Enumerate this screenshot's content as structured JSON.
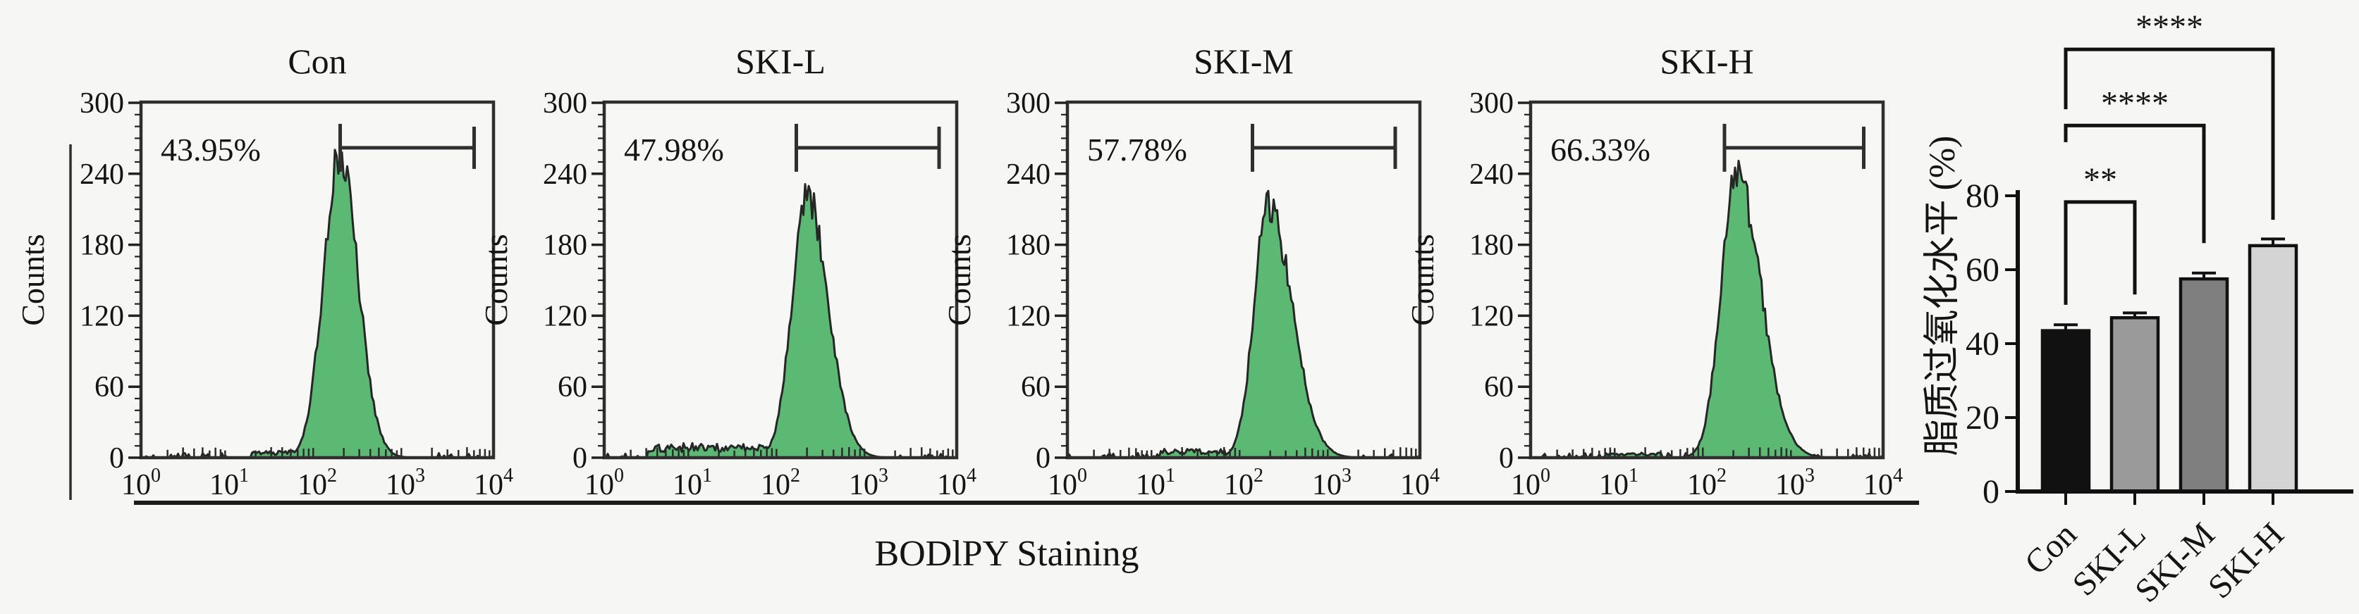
{
  "figure": {
    "background": "#f6f6f5",
    "bottom_axis_label": "BODlPY Staining",
    "counts_axis_label": "Counts"
  },
  "chart_data": [
    {
      "type": "area",
      "subtype": "flow-cytometry-histograms",
      "xlabel": "BODlPY Staining",
      "ylabel": "Counts",
      "x_scale": "log10",
      "xlim_log": [
        0,
        4
      ],
      "ylim": [
        0,
        300
      ],
      "yticks": [
        0,
        60,
        120,
        180,
        240,
        300
      ],
      "ytick_labels": [
        "0",
        "60",
        "120",
        "180",
        "240",
        "300"
      ],
      "xticks": [
        {
          "m": "10",
          "e": "0"
        },
        {
          "m": "10",
          "e": "1"
        },
        {
          "m": "10",
          "e": "2"
        },
        {
          "m": "10",
          "e": "3"
        },
        {
          "m": "10",
          "e": "4"
        }
      ],
      "fill_color": "#5cb973",
      "outline_color": "#262626",
      "panels": [
        {
          "title": "Con",
          "percent": "43.95%",
          "peak_log_center": 2.25,
          "peak_height": 256,
          "sigma_left": 0.18,
          "sigma_right": 0.21,
          "shelf": {
            "from": 1.25,
            "to": 1.9,
            "height": 4
          },
          "gate": {
            "log_from": 2.26,
            "log_to": 3.78,
            "counts": 262
          }
        },
        {
          "title": "SKI-L",
          "percent": "47.98%",
          "peak_log_center": 2.3,
          "peak_height": 221,
          "sigma_left": 0.17,
          "sigma_right": 0.24,
          "shelf": {
            "from": 0.5,
            "to": 1.95,
            "height": 8
          },
          "gate": {
            "log_from": 2.18,
            "log_to": 3.8,
            "counts": 262
          }
        },
        {
          "title": "SKI-M",
          "percent": "57.78%",
          "peak_log_center": 2.28,
          "peak_height": 213,
          "sigma_left": 0.16,
          "sigma_right": 0.27,
          "shelf": {
            "from": 1.05,
            "to": 1.8,
            "height": 5
          },
          "gate": {
            "log_from": 2.1,
            "log_to": 3.72,
            "counts": 262
          }
        },
        {
          "title": "SKI-H",
          "percent": "66.33%",
          "peak_log_center": 2.33,
          "peak_height": 240,
          "sigma_left": 0.17,
          "sigma_right": 0.28,
          "shelf": {
            "from": 0.85,
            "to": 1.5,
            "height": 3
          },
          "gate": {
            "log_from": 2.2,
            "log_to": 3.78,
            "counts": 262
          }
        }
      ]
    },
    {
      "type": "bar",
      "ylabel": "脂质过氧化水平 (%)",
      "ylim": [
        0,
        80
      ],
      "yticks": [
        0,
        20,
        40,
        60,
        80
      ],
      "ytick_labels": [
        "0",
        "20",
        "40",
        "60",
        "80"
      ],
      "categories": [
        "Con",
        "SKI-L",
        "SKI-M",
        "SKI-H"
      ],
      "values": [
        43.5,
        47,
        57.5,
        66.5
      ],
      "errors": [
        1.6,
        1.3,
        1.6,
        1.8
      ],
      "bar_colors": [
        "#111111",
        "#9a9a9a",
        "#7f7f7f",
        "#d4d4d4"
      ],
      "bar_outline": "#111111",
      "legend": "none",
      "grid": "off",
      "comparisons": [
        {
          "a": 0,
          "b": 1,
          "label": "**",
          "bracket_y": 78.3,
          "a_drop_to": 50.5,
          "b_drop_to": 53.3
        },
        {
          "a": 0,
          "b": 2,
          "label": "****",
          "bracket_y": 99.0,
          "a_drop_to": 94.5,
          "b_drop_to": 67.2
        },
        {
          "a": 0,
          "b": 3,
          "label": "****",
          "bracket_y": 119.6,
          "a_drop_to": 103.4,
          "b_drop_to": 73.5
        }
      ]
    }
  ]
}
